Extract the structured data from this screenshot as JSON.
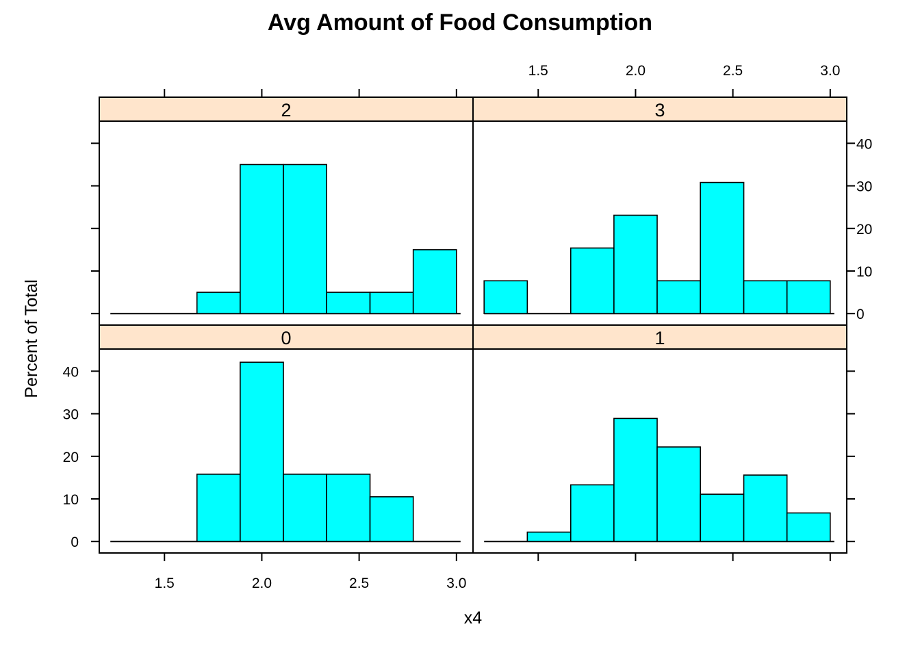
{
  "chart_data": {
    "type": "bar",
    "title": "Avg Amount of Food Consumption",
    "xlabel": "x4",
    "ylabel": "Percent of Total",
    "xlim": [
      1.165,
      3.085
    ],
    "ylim": [
      -2.7,
      45.2
    ],
    "x_ticks": [
      "1.5",
      "2.0",
      "2.5",
      "3.0"
    ],
    "y_ticks": [
      "0",
      "10",
      "20",
      "30",
      "40"
    ],
    "bin_edges": [
      1.222,
      1.444,
      1.667,
      1.889,
      2.111,
      2.333,
      2.556,
      2.778,
      3.0
    ],
    "grid": false,
    "legend": "none",
    "colors": {
      "bar_fill": "#00ffff",
      "strip_fill": "#ffe5cc",
      "bar_stroke": "#000000"
    },
    "panels": [
      {
        "label": "0",
        "values": [
          0,
          0,
          15.8,
          42.1,
          15.8,
          15.8,
          10.5,
          0
        ]
      },
      {
        "label": "1",
        "values": [
          0,
          2.2,
          13.3,
          28.9,
          22.2,
          11.1,
          15.6,
          6.7
        ]
      },
      {
        "label": "2",
        "values": [
          0,
          0,
          5,
          35,
          35,
          5,
          5,
          15
        ]
      },
      {
        "label": "3",
        "values": [
          7.7,
          0,
          15.4,
          23.1,
          7.7,
          30.8,
          7.7,
          7.7
        ]
      }
    ]
  }
}
